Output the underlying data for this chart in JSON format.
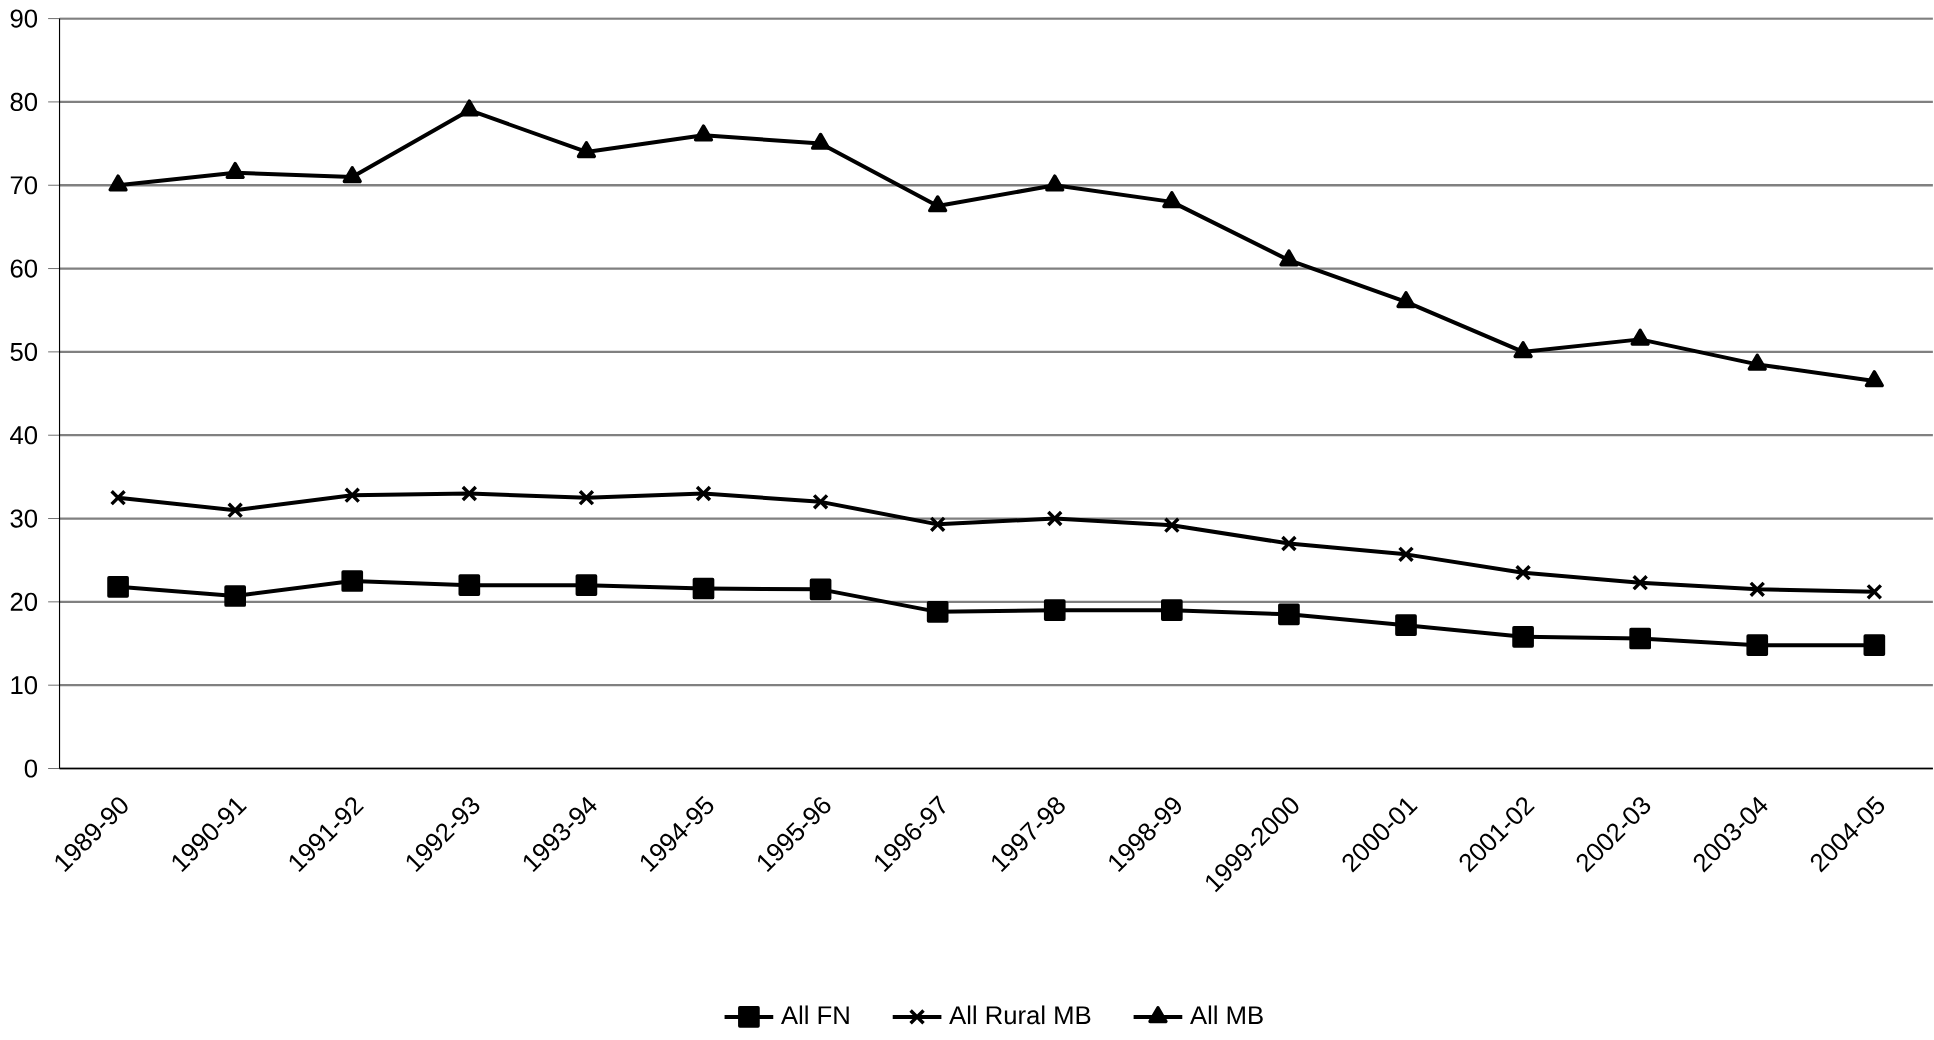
{
  "chart_data": {
    "type": "line",
    "categories": [
      "1989-90",
      "1990-91",
      "1991-92",
      "1992-93",
      "1993-94",
      "1994-95",
      "1995-96",
      "1996-97",
      "1997-98",
      "1998-99",
      "1999-2000",
      "2000-01",
      "2001-02",
      "2002-03",
      "2003-04",
      "2004-05"
    ],
    "series": [
      {
        "name": "All FN",
        "color": "#000000",
        "marker": "square",
        "values": [
          21.8,
          20.7,
          22.5,
          22,
          22,
          21.6,
          21.5,
          18.8,
          19,
          19,
          18.5,
          17.2,
          15.8,
          15.6,
          14.8,
          14.8
        ]
      },
      {
        "name": "All Rural MB",
        "color": "#000000",
        "marker": "cross",
        "values": [
          32.5,
          31,
          32.8,
          33,
          32.5,
          33,
          32,
          29.3,
          30,
          29.2,
          27,
          25.7,
          23.5,
          22.3,
          21.5,
          21.2
        ]
      },
      {
        "name": "All MB",
        "color": "#000000",
        "marker": "triangle",
        "values": [
          70,
          71.5,
          71,
          79,
          74,
          76,
          75,
          67.5,
          70,
          68,
          61,
          56,
          50,
          51.5,
          48.5,
          46.5
        ]
      }
    ],
    "ylim": [
      0,
      90
    ],
    "yticks": [
      0,
      10,
      20,
      30,
      40,
      50,
      60,
      70,
      80,
      90
    ],
    "grid": "y",
    "legend": "bottom",
    "line_style": "solid"
  }
}
